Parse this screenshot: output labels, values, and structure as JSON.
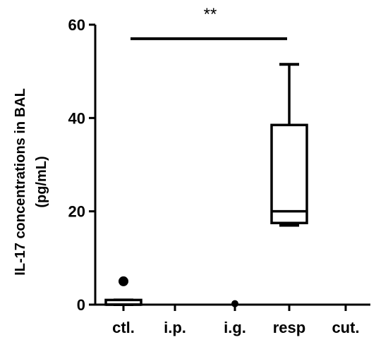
{
  "chart_data": {
    "type": "box",
    "categories": [
      "ctl.",
      "i.p.",
      "i.g.",
      "resp",
      "cut."
    ],
    "ylabel_line1": "IL-17 concentrations in BAL",
    "ylabel_line2": "(pg/mL)",
    "ylim": [
      0,
      60
    ],
    "yticks": [
      0,
      20,
      40,
      60
    ],
    "grid": false,
    "boxes": [
      {
        "category": "ctl.",
        "min": 0,
        "q1": 0,
        "median": 0,
        "q3": 1,
        "max": 1,
        "outliers": [
          5
        ]
      },
      {
        "category": "i.p.",
        "min": 0,
        "q1": 0,
        "median": 0,
        "q3": 0,
        "max": 0,
        "outliers": []
      },
      {
        "category": "i.g.",
        "min": 0,
        "q1": 0,
        "median": 0,
        "q3": 0,
        "max": 0,
        "outliers": [
          0.2
        ]
      },
      {
        "category": "resp",
        "min": 17,
        "q1": 17.5,
        "median": 20,
        "q3": 38.5,
        "max": 51.5,
        "outliers": []
      },
      {
        "category": "cut.",
        "min": 0,
        "q1": 0,
        "median": 0,
        "q3": 0,
        "max": 0,
        "outliers": []
      }
    ],
    "significance": {
      "from": "ctl.",
      "to": "resp",
      "y": 57,
      "label": "**"
    }
  }
}
